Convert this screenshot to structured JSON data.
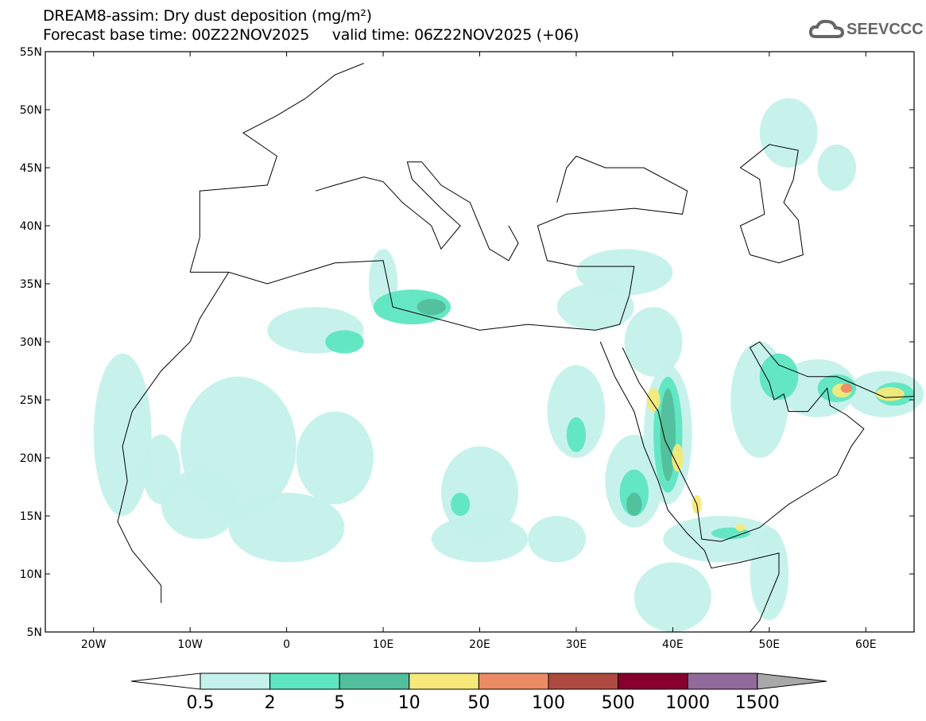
{
  "header": {
    "title": "DREAM8-assim: Dry dust deposition (mg/m²)",
    "subtitle": "Forecast base time: 00Z22NOV2025     valid time: 06Z22NOV2025 (+06)",
    "logo": "SEEVCCC"
  },
  "map": {
    "lat_labels": [
      "55N",
      "50N",
      "45N",
      "40N",
      "35N",
      "30N",
      "25N",
      "20N",
      "15N",
      "10N",
      "5N"
    ],
    "lon_labels": [
      "20W",
      "10W",
      "0",
      "10E",
      "20E",
      "30E",
      "40E",
      "50E",
      "60E"
    ]
  },
  "legend": {
    "levels": [
      "0.5",
      "2",
      "5",
      "10",
      "50",
      "100",
      "500",
      "1000",
      "1500"
    ],
    "colors": [
      "#c4f1eb",
      "#5ee6c0",
      "#52bf9c",
      "#f6e97a",
      "#ec8a66",
      "#ac4a3f",
      "#87002d",
      "#8f6a9a"
    ],
    "over_color": "#a8a8a8",
    "under_color": "#ffffff"
  }
}
